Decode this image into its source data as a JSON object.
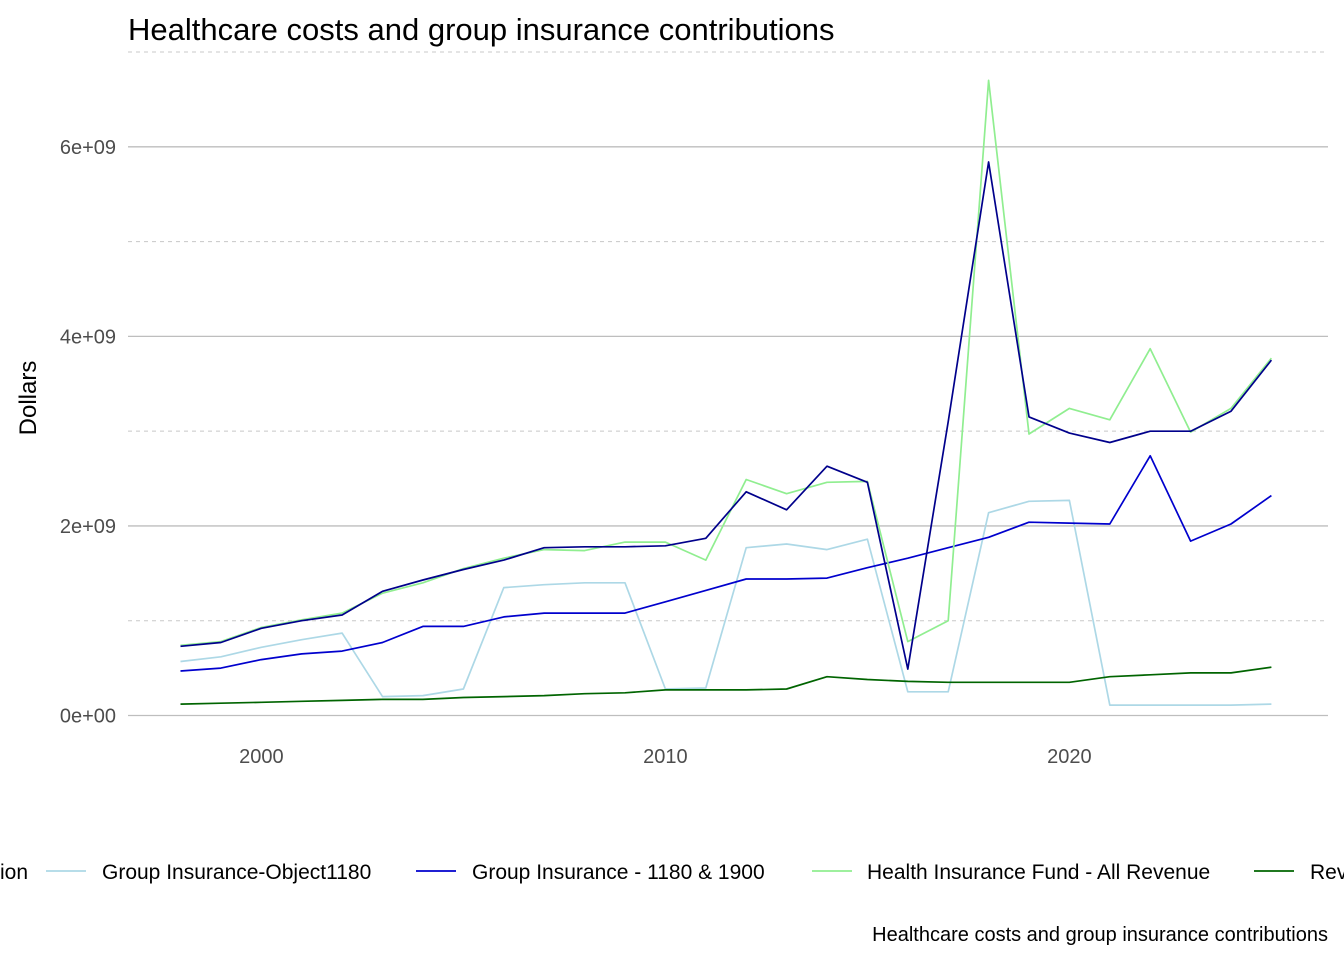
{
  "chart_data": {
    "type": "line",
    "title": "Healthcare costs and group insurance contributions",
    "caption": "Healthcare costs and group insurance contributions",
    "xlabel": "",
    "ylabel": "Dollars",
    "xlim": [
      1996.7,
      2026.4
    ],
    "ylim": [
      -100000000.0,
      7000000000.0
    ],
    "x_ticks": [
      2000,
      2010,
      2020
    ],
    "x_tick_labels": [
      "2000",
      "2010",
      "2020"
    ],
    "y_major_ticks": [
      0,
      2000000000,
      4000000000,
      6000000000
    ],
    "y_tick_labels": [
      "0e+00",
      "2e+09",
      "4e+09",
      "6e+09"
    ],
    "y_minor_ticks": [
      1000000000,
      3000000000,
      5000000000,
      7000000000
    ],
    "grid": true,
    "legend_position": "bottom",
    "x": [
      1998,
      1999,
      2000,
      2001,
      2002,
      2003,
      2004,
      2005,
      2006,
      2007,
      2008,
      2009,
      2010,
      2011,
      2012,
      2013,
      2014,
      2015,
      2016,
      2017,
      2018,
      2019,
      2020,
      2021,
      2022,
      2023,
      2024,
      2025
    ],
    "series": [
      {
        "name": "Group Insurance Contribution",
        "legend_label": "ion",
        "color": "#00008b",
        "values": [
          730000000,
          770000000,
          920000000,
          1000000000,
          1060000000,
          1310000000,
          1430000000,
          1540000000,
          1640000000,
          1770000000,
          1780000000,
          1780000000,
          1790000000,
          1870000000,
          2360000000,
          2170000000,
          2630000000,
          2460000000,
          490000000,
          3100000000,
          5840000000,
          3150000000,
          2980000000,
          2880000000,
          3000000000,
          3000000000,
          3210000000,
          3750000000
        ]
      },
      {
        "name": "Group Insurance-Object1180",
        "color": "#add8e6",
        "values": [
          570000000,
          620000000,
          720000000,
          800000000,
          870000000,
          200000000,
          210000000,
          280000000,
          1350000000,
          1380000000,
          1400000000,
          1400000000,
          280000000,
          290000000,
          1770000000,
          1810000000,
          1750000000,
          1860000000,
          250000000,
          250000000,
          2140000000,
          2260000000,
          2270000000,
          110000000,
          110000000,
          110000000,
          110000000,
          120000000
        ]
      },
      {
        "name": "Group Insurance - 1180 & 1900",
        "color": "#0000cd",
        "values": [
          470000000,
          500000000,
          590000000,
          650000000,
          680000000,
          770000000,
          940000000,
          940000000,
          1040000000,
          1080000000,
          1080000000,
          1080000000,
          1200000000,
          1320000000,
          1440000000,
          1440000000,
          1450000000,
          1560000000,
          1660000000,
          1770000000,
          1880000000,
          2040000000,
          2030000000,
          2020000000,
          2740000000,
          1840000000,
          2020000000,
          2320000000
        ]
      },
      {
        "name": "Health Insurance Fund - All Revenue",
        "color": "#90ee90",
        "values": [
          740000000,
          780000000,
          930000000,
          1010000000,
          1080000000,
          1290000000,
          1400000000,
          1550000000,
          1660000000,
          1750000000,
          1740000000,
          1830000000,
          1830000000,
          1640000000,
          2490000000,
          2340000000,
          2460000000,
          2470000000,
          780000000,
          1000000000,
          6700000000,
          2970000000,
          3240000000,
          3120000000,
          3870000000,
          2990000000,
          3240000000,
          3770000000
        ]
      },
      {
        "name": "Revenue",
        "legend_label": "Rev",
        "color": "#006400",
        "values": [
          120000000,
          130000000,
          140000000,
          150000000,
          160000000,
          170000000,
          170000000,
          190000000,
          200000000,
          210000000,
          230000000,
          240000000,
          270000000,
          270000000,
          270000000,
          280000000,
          410000000,
          380000000,
          360000000,
          350000000,
          350000000,
          350000000,
          350000000,
          410000000,
          430000000,
          450000000,
          450000000,
          510000000
        ]
      }
    ]
  }
}
